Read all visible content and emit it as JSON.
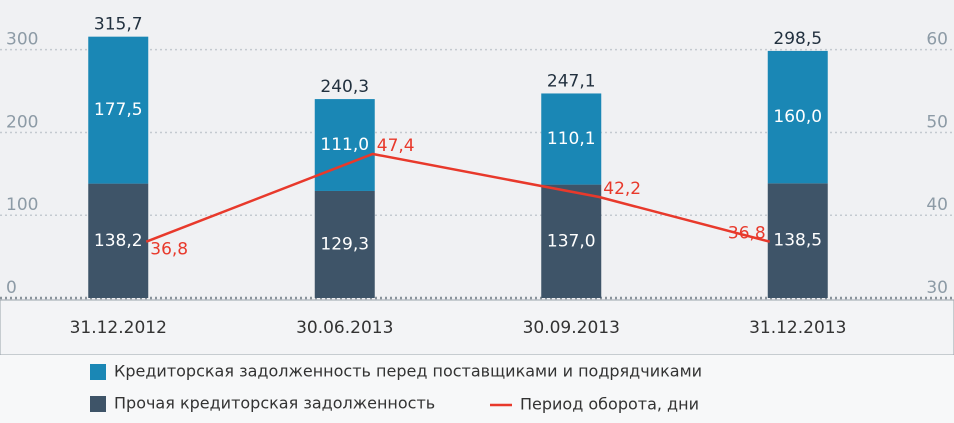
{
  "chart_data": {
    "type": "stacked-bar-line",
    "categories": [
      "31.12.2012",
      "30.06.2013",
      "30.09.2013",
      "31.12.2013"
    ],
    "series": [
      {
        "name": "Прочая кредиторская задолженность",
        "color": "#3e5468",
        "values": [
          138.2,
          129.3,
          137.0,
          138.5
        ],
        "value_labels": [
          "138,2",
          "129,3",
          "137,0",
          "138,5"
        ]
      },
      {
        "name": "Кредиторская задолженность перед поставщиками и подрядчиками",
        "color": "#1a87b5",
        "values": [
          177.5,
          111.0,
          110.1,
          160.0
        ],
        "value_labels": [
          "177,5",
          "111,0",
          "110,1",
          "160,0"
        ]
      },
      {
        "name": "Период оборота, дни",
        "color": "#e8392b",
        "axis": "y2",
        "values": [
          36.8,
          47.4,
          42.2,
          36.8
        ],
        "value_labels": [
          "36,8",
          "47,4",
          "42,2",
          "36,8"
        ]
      }
    ],
    "totals": {
      "values": [
        315.7,
        240.3,
        247.1,
        298.5
      ],
      "value_labels": [
        "315,7",
        "240,3",
        "247,1",
        "298,5"
      ]
    },
    "ylim": [
      0,
      360
    ],
    "yticks": [
      0,
      100,
      200,
      300
    ],
    "y2lim": [
      30,
      66
    ],
    "y2ticks": [
      30,
      40,
      50,
      60
    ],
    "grid": true
  }
}
